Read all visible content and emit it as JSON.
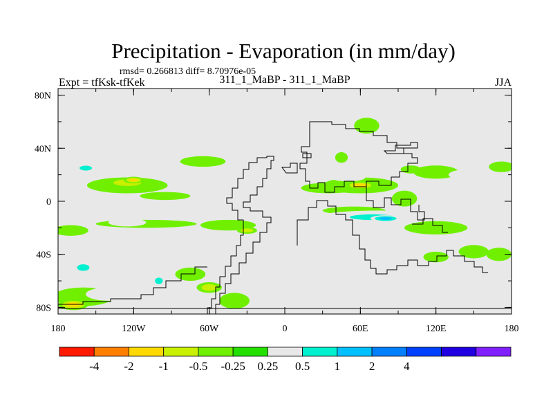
{
  "chart_data": {
    "type": "heatmap",
    "title": "Precipitation - Evaporation (in mm/day)",
    "stats": "rmsd= 0.266813 diff= 8.70976e-05",
    "left_label": "Expt = tfKsk-tfKek",
    "center_label": "311_1_MaBP - 311_1_MaBP",
    "right_label": "JJA",
    "x_ticks": [
      {
        "value": -180,
        "label": "180"
      },
      {
        "value": -120,
        "label": "120W"
      },
      {
        "value": -60,
        "label": "60W"
      },
      {
        "value": 0,
        "label": "0"
      },
      {
        "value": 60,
        "label": "60E"
      },
      {
        "value": 120,
        "label": "120E"
      },
      {
        "value": 180,
        "label": "180"
      }
    ],
    "y_ticks": [
      {
        "value": 80,
        "label": "80N"
      },
      {
        "value": 40,
        "label": "40N"
      },
      {
        "value": 0,
        "label": "0"
      },
      {
        "value": -40,
        "label": "40S"
      },
      {
        "value": -80,
        "label": "80S"
      }
    ],
    "xlim": [
      -180,
      180
    ],
    "ylim": [
      -85,
      85
    ],
    "levels": [
      -4,
      -2,
      -1,
      -0.5,
      -0.25,
      0.25,
      0.5,
      1,
      2,
      4
    ],
    "level_labels": [
      "-4",
      "-2",
      "-1",
      "-0.5",
      "-0.25",
      "0.25",
      "0.5",
      "1",
      "2",
      "4"
    ],
    "colors": [
      "#ff1a00",
      "#ff8000",
      "#ffd900",
      "#c8f000",
      "#70f000",
      "#24e000",
      "#e8e8e8",
      "#00f0d0",
      "#00c0ff",
      "#0080ff",
      "#0040ff",
      "#2000e0",
      "#8020ff"
    ],
    "background_color": "#e8e8e8",
    "features": [
      {
        "lon": -125,
        "lat": 12,
        "rlon": 32,
        "rlat": 6,
        "v": -0.4
      },
      {
        "lon": -125,
        "lat": 14,
        "rlon": 18,
        "rlat": 4,
        "v": -0.8
      },
      {
        "lon": -120,
        "lat": 16,
        "rlon": 8,
        "rlat": 2.5,
        "v": -1.3
      },
      {
        "lon": -150,
        "lat": 22,
        "rlon": 16,
        "rlat": 5,
        "v": 0.4
      },
      {
        "lon": -158,
        "lat": 25,
        "rlon": 8,
        "rlat": 3,
        "v": 0.8
      },
      {
        "lon": -100,
        "lat": 26,
        "rlon": 18,
        "rlat": 4,
        "v": 0.35
      },
      {
        "lon": -65,
        "lat": 30,
        "rlon": 18,
        "rlat": 4,
        "v": -0.4
      },
      {
        "lon": -95,
        "lat": 4,
        "rlon": 20,
        "rlat": 3,
        "v": -0.35
      },
      {
        "lon": -110,
        "lat": -17,
        "rlon": 40,
        "rlat": 3,
        "v": -0.3
      },
      {
        "lon": -125,
        "lat": -16,
        "rlon": 15,
        "rlat": 3,
        "v": 0.4
      },
      {
        "lon": -170,
        "lat": -22,
        "rlon": 14,
        "rlat": 4,
        "v": -0.3
      },
      {
        "lon": -160,
        "lat": -58,
        "rlon": 22,
        "rlat": 10,
        "v": 0.35
      },
      {
        "lon": -160,
        "lat": -50,
        "rlon": 8,
        "rlat": 4,
        "v": 0.7
      },
      {
        "lon": -160,
        "lat": -72,
        "rlon": 24,
        "rlat": 7,
        "v": -0.45
      },
      {
        "lon": -168,
        "lat": -78,
        "rlon": 12,
        "rlat": 4,
        "v": -1.2
      },
      {
        "lon": -140,
        "lat": -70,
        "rlon": 18,
        "rlat": 5,
        "v": 0.35
      },
      {
        "lon": -105,
        "lat": -58,
        "rlon": 12,
        "rlat": 8,
        "v": 0.35
      },
      {
        "lon": -100,
        "lat": -60,
        "rlon": 5,
        "rlat": 4,
        "v": 0.7
      },
      {
        "lon": -75,
        "lat": -55,
        "rlon": 12,
        "rlat": 5,
        "v": -0.35
      },
      {
        "lon": -60,
        "lat": -65,
        "rlon": 10,
        "rlat": 4,
        "v": -0.5
      },
      {
        "lon": -30,
        "lat": -60,
        "rlon": 18,
        "rlat": 8,
        "v": 0.4
      },
      {
        "lon": -40,
        "lat": -75,
        "rlon": 12,
        "rlat": 6,
        "v": -0.4
      },
      {
        "lon": -45,
        "lat": -18,
        "rlon": 22,
        "rlat": 4,
        "v": -0.4
      },
      {
        "lon": -30,
        "lat": -22,
        "rlon": 8,
        "rlat": 2.5,
        "v": -0.9
      },
      {
        "lon": 35,
        "lat": 10,
        "rlon": 22,
        "rlat": 4,
        "v": -0.4
      },
      {
        "lon": 60,
        "lat": 12,
        "rlon": 30,
        "rlat": 6,
        "v": -0.35
      },
      {
        "lon": 60,
        "lat": 12,
        "rlon": 12,
        "rlat": 3,
        "v": -1.1
      },
      {
        "lon": 50,
        "lat": 18,
        "rlon": 14,
        "rlat": 3,
        "v": 0.4
      },
      {
        "lon": 95,
        "lat": 2,
        "rlon": 10,
        "rlat": 6,
        "v": -0.4
      },
      {
        "lon": 45,
        "lat": 33,
        "rlon": 5,
        "rlat": 4,
        "v": -0.35
      },
      {
        "lon": 65,
        "lat": 57,
        "rlon": 10,
        "rlat": 6,
        "v": -0.35
      },
      {
        "lon": 100,
        "lat": 24,
        "rlon": 8,
        "rlat": 3,
        "v": -0.4
      },
      {
        "lon": 120,
        "lat": 22,
        "rlon": 18,
        "rlat": 5,
        "v": -0.4
      },
      {
        "lon": 145,
        "lat": 20,
        "rlon": 15,
        "rlat": 4,
        "v": 0.35
      },
      {
        "lon": 172,
        "lat": 26,
        "rlon": 10,
        "rlat": 4,
        "v": -0.4
      },
      {
        "lon": 55,
        "lat": -7,
        "rlon": 25,
        "rlat": 3,
        "v": -0.35
      },
      {
        "lon": 75,
        "lat": -12,
        "rlon": 50,
        "rlat": 5,
        "v": 0.4
      },
      {
        "lon": 70,
        "lat": -12,
        "rlon": 30,
        "rlat": 3.5,
        "v": 0.8
      },
      {
        "lon": 80,
        "lat": -13,
        "rlon": 12,
        "rlat": 2.5,
        "v": 1.5
      },
      {
        "lon": 120,
        "lat": -20,
        "rlon": 25,
        "rlat": 5,
        "v": -0.4
      },
      {
        "lon": 30,
        "lat": -20,
        "rlon": 10,
        "rlat": 3,
        "v": 0.4
      },
      {
        "lon": 62,
        "lat": -33,
        "rlon": 10,
        "rlat": 8,
        "v": 0.4
      },
      {
        "lon": 150,
        "lat": -38,
        "rlon": 12,
        "rlat": 5,
        "v": -0.35
      },
      {
        "lon": 120,
        "lat": -42,
        "rlon": 10,
        "rlat": 4,
        "v": -0.3
      },
      {
        "lon": 170,
        "lat": -40,
        "rlon": 10,
        "rlat": 5,
        "v": -0.35
      },
      {
        "lon": 175,
        "lat": -68,
        "rlon": 10,
        "rlat": 10,
        "v": 0.4
      },
      {
        "lon": 160,
        "lat": -62,
        "rlon": 6,
        "rlat": 4,
        "v": 0.35
      }
    ]
  }
}
